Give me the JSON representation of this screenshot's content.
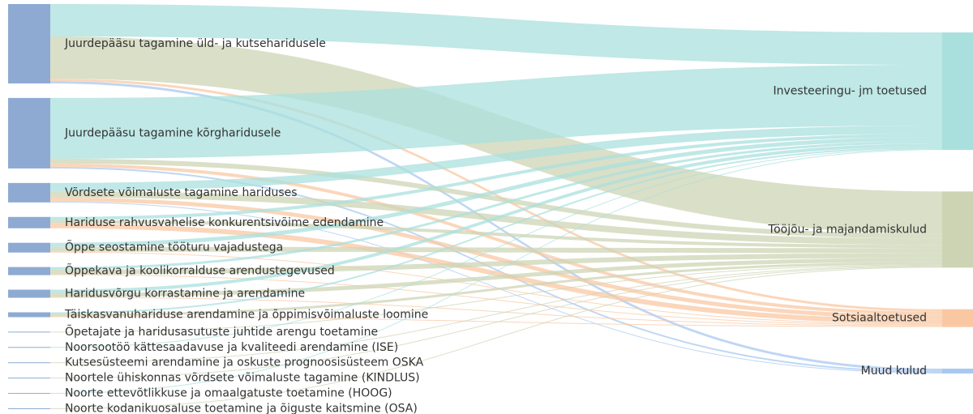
{
  "chart_data": {
    "type": "sankey",
    "sources": [
      "Juurdepääsu tagamine üld- ja kutseharidusele",
      "Juurdepääsu tagamine kõrgharidusele",
      "Võrdsete võimaluste tagamine hariduses",
      "Hariduse rahvusvahelise konkurentsivõime edendamine",
      "Õppe seostamine tööturu vajadustega",
      "Õppekava ja koolikorralduse arendustegevused",
      "Haridusvõrgu korrastamine ja arendamine",
      "Täiskasvanuhariduse arendamine ja õppimisvõimaluste loomine",
      "Õpetajate ja haridusasutuste juhtide arengu toetamine",
      "Noorsootöö kättesaadavuse ja kvaliteedi arendamine (ISE)",
      "Kutsesüsteemi arendamine ja oskuste prognoosisüsteem OSKA",
      "Noortele ühiskonnas võrdsete võimaluste tagamine (KINDLUS)",
      "Noorte ettevõtlikkuse ja omaalgatuste toetamine (HOOG)",
      "Noorte kodanikuosaluse toetamine ja õiguste kaitsmine (OSA)"
    ],
    "targets": [
      "Investeeringu- jm toetused",
      "Tööjõu- ja majandamiskulud",
      "Sotsiaaltoetused",
      "Muud kulud"
    ],
    "target_colors": [
      "#a9e0de",
      "#cdd4b4",
      "#f9c8a3",
      "#a8c8f0"
    ],
    "node_color": "#8eaad3",
    "flows": [
      [
        40,
        52,
        3,
        3
      ],
      [
        75,
        6,
        4,
        2
      ],
      [
        10,
        8,
        5,
        1
      ],
      [
        4,
        4,
        6,
        null
      ],
      [
        5,
        6,
        1,
        null
      ],
      [
        3,
        6,
        1,
        null
      ],
      [
        4,
        5,
        1,
        null
      ],
      [
        2,
        3,
        1,
        null
      ],
      [
        null,
        1,
        null,
        null
      ],
      [
        1,
        null,
        null,
        null
      ],
      [
        null,
        1,
        null,
        null
      ],
      [
        null,
        1,
        null,
        null
      ],
      [
        1,
        null,
        null,
        null
      ],
      [
        null,
        1,
        null,
        null
      ]
    ]
  }
}
